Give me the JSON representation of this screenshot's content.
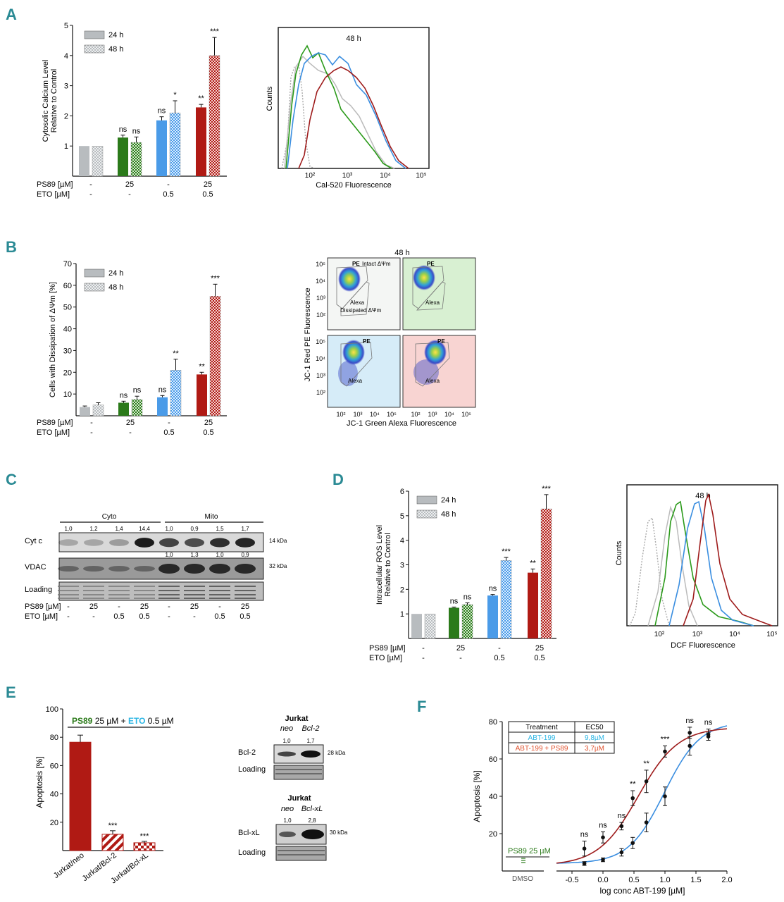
{
  "colors": {
    "gray": "#b8bcbf",
    "green": "#2b7a1a",
    "blue": "#4a9be8",
    "red": "#b01a14",
    "teal": "#2a8a94",
    "cyan": "#2cb6e4",
    "orange": "#e0522e"
  },
  "panelA": {
    "letter": "A",
    "chart_data": {
      "type": "bar",
      "ylabel": "Cytosolic Calcium Level Relative to Control",
      "ylim": [
        0,
        5
      ],
      "yticks": [
        "1",
        "2",
        "3",
        "4",
        "5"
      ],
      "legend": [
        "24 h",
        "48 h"
      ],
      "groups": [
        {
          "v24": 1.0,
          "e24": 0,
          "v48": 1.0,
          "e48": 0,
          "s24": "",
          "s48": ""
        },
        {
          "v24": 1.28,
          "e24": 0.08,
          "v48": 1.12,
          "e48": 0.18,
          "s24": "ns",
          "s48": "ns"
        },
        {
          "v24": 1.85,
          "e24": 0.12,
          "v48": 2.1,
          "e48": 0.4,
          "s24": "ns",
          "s48": "*"
        },
        {
          "v24": 2.28,
          "e24": 0.1,
          "v48": 4.0,
          "e48": 0.6,
          "s24": "**",
          "s48": "***"
        }
      ],
      "rows": [
        {
          "label": "PS89 [µM]",
          "values": [
            "-",
            "25",
            "-",
            "25"
          ]
        },
        {
          "label": "ETO  [µM]",
          "values": [
            "-",
            "-",
            "0.5",
            "0.5"
          ]
        }
      ]
    },
    "flow": {
      "title": "48 h",
      "ylabel": "Counts",
      "xlabel": "Cal-520 Fluorescence",
      "xticks": [
        "10²",
        "10³",
        "10⁴",
        "10⁵"
      ]
    }
  },
  "panelB": {
    "letter": "B",
    "chart_data": {
      "type": "bar",
      "ylabel": "Cells with Dissipation of ΔΨm [%]",
      "ylim": [
        0,
        70
      ],
      "yticks": [
        "10",
        "20",
        "30",
        "40",
        "50",
        "60",
        "70"
      ],
      "legend": [
        "24 h",
        "48 h"
      ],
      "groups": [
        {
          "v24": 4.0,
          "e24": 0.5,
          "v48": 5.0,
          "e48": 1.0,
          "s24": "",
          "s48": ""
        },
        {
          "v24": 6.0,
          "e24": 0.7,
          "v48": 7.5,
          "e48": 1.5,
          "s24": "ns",
          "s48": "ns"
        },
        {
          "v24": 8.5,
          "e24": 0.8,
          "v48": 21.0,
          "e48": 5.0,
          "s24": "ns",
          "s48": "**"
        },
        {
          "v24": 19.0,
          "e24": 1.0,
          "v48": 55.0,
          "e48": 5.5,
          "s24": "**",
          "s48": "***"
        }
      ],
      "rows": [
        {
          "label": "PS89 [µM]",
          "values": [
            "-",
            "25",
            "-",
            "25"
          ]
        },
        {
          "label": "ETO  [µM]",
          "values": [
            "-",
            "-",
            "0.5",
            "0.5"
          ]
        }
      ]
    },
    "flow": {
      "title": "48 h",
      "ylabel": "JC-1 Red PE Fluorescence",
      "xlabel": "JC-1 Green Alexa Fluorescence",
      "pe": "PE",
      "alexa": "Alexa",
      "intact": "Intact ΔΨm",
      "dissipated": "Dissipated ΔΨm",
      "yticks": [
        "10⁵",
        "10⁴",
        "10³",
        "10²"
      ],
      "xticks": [
        "10²",
        "10³",
        "10⁴",
        "10⁵"
      ]
    }
  },
  "panelC": {
    "letter": "C",
    "cyto": "Cyto",
    "mito": "Mito",
    "cytc": "Cyt c",
    "vdac": "VDAC",
    "loading": "Loading",
    "kda14": "14 kDa",
    "kda32": "32 kDa",
    "cytc_ratios": [
      "1,0",
      "1,2",
      "1,4",
      "14,4",
      "1,0",
      "0,9",
      "1,5",
      "1,7"
    ],
    "vdac_ratios": [
      "1,0",
      "1,3",
      "1,0",
      "0,9"
    ],
    "rows": [
      {
        "label": "PS89 [µM]",
        "values": [
          "-",
          "25",
          "-",
          "25",
          "-",
          "25",
          "-",
          "25"
        ]
      },
      {
        "label": "ETO  [µM]",
        "values": [
          "-",
          "-",
          "0.5",
          "0.5",
          "-",
          "-",
          "0.5",
          "0.5"
        ]
      }
    ]
  },
  "panelD": {
    "letter": "D",
    "chart_data": {
      "type": "bar",
      "ylabel": "Intracellular ROS Level Relative to Control",
      "ylim": [
        0,
        6
      ],
      "yticks": [
        "1",
        "2",
        "3",
        "4",
        "5",
        "6"
      ],
      "legend": [
        "24 h",
        "48 h"
      ],
      "groups": [
        {
          "v24": 1.0,
          "e24": 0,
          "v48": 1.0,
          "e48": 0,
          "s24": "",
          "s48": ""
        },
        {
          "v24": 1.25,
          "e24": 0.03,
          "v48": 1.38,
          "e48": 0.07,
          "s24": "ns",
          "s48": "ns"
        },
        {
          "v24": 1.75,
          "e24": 0.04,
          "v48": 3.18,
          "e48": 0.12,
          "s24": "ns",
          "s48": "***"
        },
        {
          "v24": 2.68,
          "e24": 0.15,
          "v48": 5.28,
          "e48": 0.58,
          "s24": "**",
          "s48": "***"
        }
      ],
      "rows": [
        {
          "label": "PS89 [µM]",
          "values": [
            "-",
            "25",
            "-",
            "25"
          ]
        },
        {
          "label": "ETO  [µM]",
          "values": [
            "-",
            "-",
            "0.5",
            "0.5"
          ]
        }
      ]
    },
    "flow": {
      "title": "48 h",
      "ylabel": "Counts",
      "xlabel": "DCF Fluorescence",
      "xticks": [
        "10²",
        "10³",
        "10⁴",
        "10⁵"
      ]
    }
  },
  "panelE": {
    "letter": "E",
    "chart_data": {
      "type": "bar",
      "ylabel": "Apoptosis [%]",
      "ylim": [
        0,
        100
      ],
      "yticks": [
        "20",
        "40",
        "60",
        "80",
        "100"
      ],
      "categories": [
        "Jurkat/neo",
        "Jurkat/Bcl-2",
        "Jurkat/Bcl-xL"
      ],
      "values": [
        76.5,
        11.5,
        5.5
      ],
      "errors": [
        5.0,
        2.5,
        1.0
      ],
      "sig": [
        "",
        "***",
        "***"
      ]
    },
    "header": {
      "ps89": "PS89",
      "dose1": " 25 µM + ",
      "eto": "ETO",
      "dose2": " 0.5 µM"
    },
    "blot1": {
      "title": "Jurkat",
      "neo": "neo",
      "bcl": "Bcl-2",
      "r1": "1,0",
      "r2": "1,7",
      "protein": "Bcl-2",
      "loading": "Loading",
      "kda": "28 kDa"
    },
    "blot2": {
      "title": "Jurkat",
      "neo": "neo",
      "bcl": "Bcl-xL",
      "r1": "1,0",
      "r2": "2,8",
      "protein": "Bcl-xL",
      "loading": "Loading",
      "kda": "30 kDa"
    }
  },
  "panelF": {
    "letter": "F",
    "chart_data": {
      "type": "scatter",
      "ylabel": "Apoptosis [%]",
      "xlabel": "log conc ABT-199 [µM]",
      "xlim": [
        -0.75,
        2.0
      ],
      "ylim": [
        0,
        80
      ],
      "xticks": [
        "-0.5",
        "0.0",
        "0.5",
        "1.0",
        "1.5",
        "2.0"
      ],
      "yticks": [
        "20",
        "40",
        "60",
        "80"
      ],
      "x": [
        -0.3,
        0.0,
        0.3,
        0.48,
        0.7,
        1.0,
        1.4,
        1.7
      ],
      "series": [
        {
          "name": "ABT-199",
          "values": [
            4,
            6,
            10,
            15,
            26,
            40,
            67,
            73
          ],
          "errors": [
            1,
            1,
            2,
            3,
            5,
            5,
            5,
            3
          ]
        },
        {
          "name": "ABT-199 + PS89",
          "values": [
            12,
            18,
            24,
            39,
            48,
            64,
            74,
            72
          ],
          "errors": [
            4,
            3,
            2,
            4,
            6,
            3,
            3,
            2
          ]
        }
      ],
      "sig": [
        "ns",
        "ns",
        "ns",
        "**",
        "**",
        "***",
        "ns",
        "ns"
      ],
      "table": {
        "h1": "Treatment",
        "h2": "EC50",
        "r1a": "ABT-199",
        "r1b": "9,8µM",
        "r2a": "ABT-199 + PS89",
        "r2b": "3,7µM"
      },
      "dmso": "DMSO",
      "ps89_label": "PS89 25 µM"
    }
  }
}
